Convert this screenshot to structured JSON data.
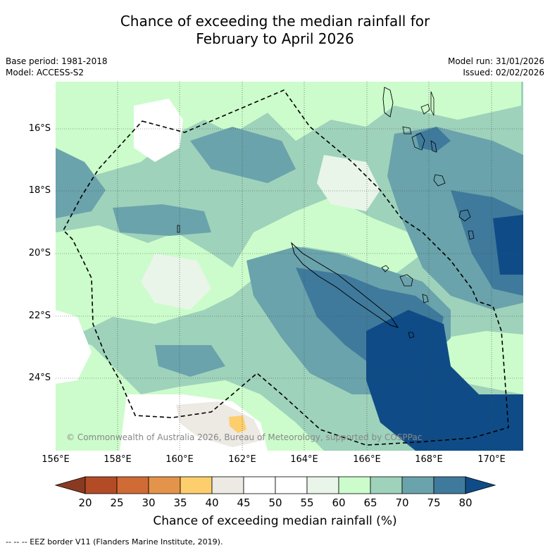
{
  "title": {
    "line1": "Chance of exceeding the median rainfall for",
    "line2": "February to April 2026"
  },
  "meta": {
    "base_period": "Base period: 1981-2018",
    "model": "Model: ACCESS-S2",
    "model_run": "Model run: 31/01/2026",
    "issued": "Issued: 02/02/2026"
  },
  "axes": {
    "lat_labels": [
      "16°S",
      "18°S",
      "20°S",
      "22°S",
      "24°S"
    ],
    "lon_labels": [
      "156°E",
      "158°E",
      "160°E",
      "162°E",
      "164°E",
      "166°E",
      "168°E",
      "170°E"
    ]
  },
  "colorbar": {
    "ticks": [
      "20",
      "25",
      "30",
      "35",
      "40",
      "45",
      "50",
      "55",
      "60",
      "65",
      "70",
      "75",
      "80"
    ],
    "colors": [
      "#8b3a22",
      "#b34c26",
      "#d06b35",
      "#e4944a",
      "#fccf6c",
      "#ede9e3",
      "#ffffff",
      "#ffffff",
      "#e9f5e8",
      "#ccfccb",
      "#9ed2bb",
      "#6aa3ab",
      "#3f7a9c",
      "#0f4c87"
    ],
    "label": "Chance of exceeding median rainfall (%)"
  },
  "copyright": "© Commonwealth of Australia 2026, Bureau of Meteorology, supported by COSPPac",
  "footer": "--  --  -- EEZ border V11 (Flanders Marine Institute, 2019).",
  "icons": {
    "eez_border": "dashed-line",
    "coastline": "black-outline"
  }
}
